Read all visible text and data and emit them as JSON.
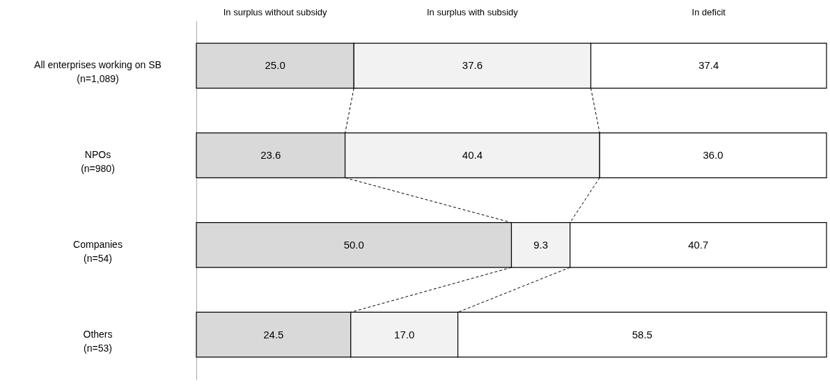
{
  "chart_data": {
    "type": "bar",
    "orientation": "horizontal",
    "stacked": true,
    "legend": "top",
    "tick_labels": "y",
    "xlim": [
      0,
      100
    ],
    "categories": [
      "All enterprises working on SB\n(n=1,089)",
      "NPOs\n(n=980)",
      "Companies\n(n=54)",
      "Others\n(n=53)"
    ],
    "series": [
      {
        "name": "In surplus without subsidy",
        "color": "#d9d9d9",
        "values": [
          25.0,
          23.6,
          50.0,
          24.5
        ],
        "value_labels": [
          "25.0",
          "23.6",
          "50.0",
          "24.5"
        ]
      },
      {
        "name": "In surplus with subsidy",
        "color": "#f2f2f2",
        "values": [
          37.6,
          40.4,
          9.3,
          17.0
        ],
        "value_labels": [
          "37.6",
          "40.4",
          "9.3",
          "17.0"
        ]
      },
      {
        "name": "In deficit",
        "color": "#ffffff",
        "values": [
          37.4,
          36.0,
          40.7,
          58.5
        ],
        "value_labels": [
          "37.4",
          "36.0",
          "40.7",
          "58.5"
        ]
      }
    ]
  }
}
